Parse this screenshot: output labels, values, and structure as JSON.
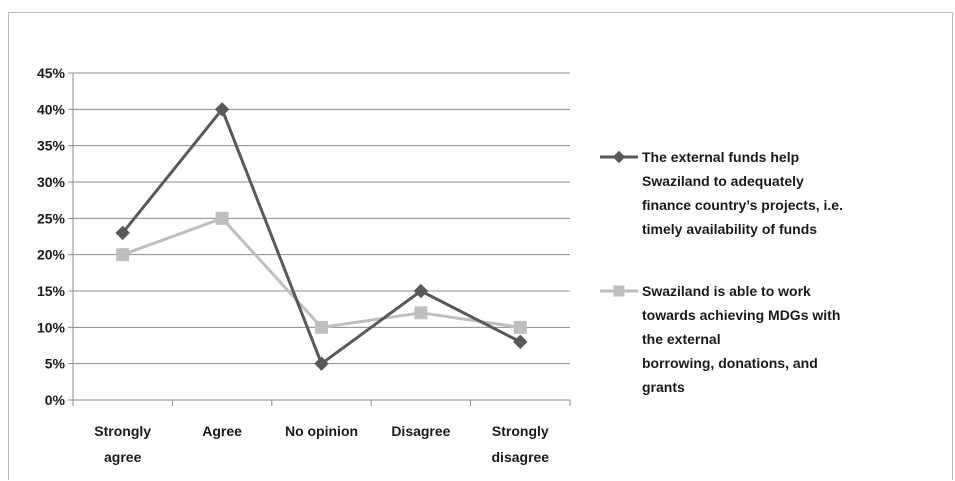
{
  "chart_data": {
    "type": "line",
    "categories": [
      [
        "Strongly",
        "agree"
      ],
      [
        "Agree"
      ],
      [
        "No opinion"
      ],
      [
        "Disagree"
      ],
      [
        "Strongly",
        "disagree"
      ]
    ],
    "y_ticks": [
      "0%",
      "5%",
      "10%",
      "15%",
      "20%",
      "25%",
      "30%",
      "35%",
      "40%",
      "45%"
    ],
    "ylim": [
      0,
      45
    ],
    "grid": true,
    "legend_position": "right",
    "series": [
      {
        "name": "The external funds help Swaziland to adequately finance country’s projects, i.e. timely availability  of funds",
        "legend_lines": [
          "The external funds help",
          "Swaziland to adequately",
          "finance country’s projects, i.e.",
          "timely availability  of funds"
        ],
        "values": [
          23,
          40,
          5,
          15,
          8
        ],
        "color": "#595959",
        "marker": "diamond"
      },
      {
        "name": "Swaziland is able to work towards achieving MDGs with the external borrowing, donations, and grants",
        "legend_lines": [
          "Swaziland is able to work",
          "towards achieving MDGs with",
          "the external",
          "borrowing, donations, and",
          "grants"
        ],
        "values": [
          20,
          25,
          10,
          12,
          10
        ],
        "color": "#bfbfbf",
        "marker": "square"
      }
    ]
  }
}
